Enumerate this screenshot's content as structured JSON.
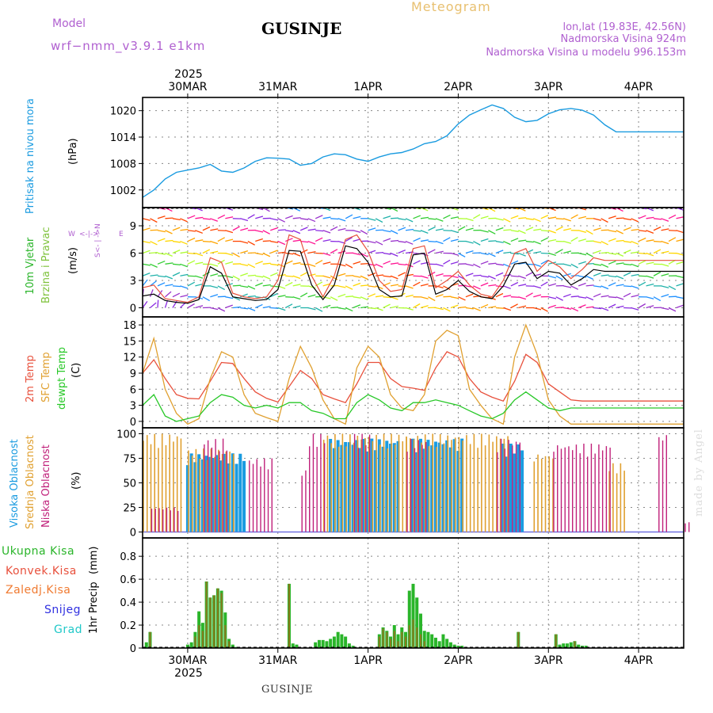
{
  "header": {
    "model_label": "Model",
    "model_name": "wrf−nmm_v3.9.1  e1km",
    "title": "GUSINJE",
    "subtitle": "Meteogram",
    "lonlat": "lon,lat (19.83E, 42.56N)",
    "elevation": "Nadmorska Visina 924m",
    "model_elevation": "Nadmorska Visina u modelu 996.153m",
    "footer": "GUSINJE",
    "credit": "made by Angel"
  },
  "time_axis": {
    "year": "2025",
    "labels": [
      "30MAR",
      "31MAR",
      "1APR",
      "2APR",
      "3APR",
      "4APR"
    ],
    "range_hours": [
      -12,
      132
    ]
  },
  "colors": {
    "pressure": "#1a9be0",
    "wind_axis": "#2ab52a",
    "wind_axis2": "#7ec23a",
    "t2m": "#e8503c",
    "sfc": "#e0a030",
    "dew": "#28c828",
    "cloud_high": "#1a9be0",
    "cloud_mid": "#e0a030",
    "cloud_low": "#c0207a",
    "precip_total": "#2ab52a",
    "precip_conv": "#e8503c",
    "precip_frz": "#f07a30",
    "precip_snow": "#3030e0",
    "precip_hail": "#20c8c8",
    "magenta": "#b060d0"
  },
  "chart_data": [
    {
      "type": "line",
      "ylabel": "Pritisak na nivou mora",
      "unit": "(hPa)",
      "yticks": [
        1002,
        1008,
        1014,
        1020
      ],
      "ylim": [
        998,
        1023
      ],
      "x": [
        -12,
        -9,
        -6,
        -3,
        0,
        3,
        6,
        9,
        12,
        15,
        18,
        21,
        24,
        27,
        30,
        33,
        36,
        39,
        42,
        45,
        48,
        51,
        54,
        57,
        60,
        63,
        66,
        69,
        72,
        75,
        78,
        81,
        84,
        87,
        90,
        93,
        96,
        99,
        102,
        105,
        108,
        111,
        114,
        117,
        120,
        123,
        126,
        129,
        132
      ],
      "series": [
        {
          "values": [
            1000.3,
            1002,
            1004.5,
            1006,
            1006.5,
            1007,
            1007.8,
            1006.3,
            1006,
            1007,
            1008.5,
            1009.3,
            1009.2,
            1009,
            1007.6,
            1008,
            1009.5,
            1010.2,
            1010,
            1009,
            1008.5,
            1009.5,
            1010.2,
            1010.5,
            1011.3,
            1012.5,
            1013,
            1014.3,
            1017,
            1019,
            1020.2,
            1021.3,
            1020.5,
            1018.5,
            1017.5,
            1017.8,
            1019.3,
            1020.2,
            1020.5,
            1020.1,
            1019,
            1016.8,
            1015.2,
            1015.2,
            1015.2,
            1015.2,
            1015.2,
            1015.2,
            1015.2
          ]
        }
      ]
    },
    {
      "type": "line",
      "ylabel": "10m Vjetar Brzina i Pravac",
      "unit": "(m/s)",
      "compass": "N <- | -> S  W ... E",
      "yticks": [
        0,
        3,
        6,
        9
      ],
      "ylim": [
        -1,
        11
      ],
      "x": [
        -12,
        -9,
        -6,
        -3,
        0,
        3,
        6,
        9,
        12,
        15,
        18,
        21,
        24,
        27,
        30,
        33,
        36,
        39,
        42,
        45,
        48,
        51,
        54,
        57,
        60,
        63,
        66,
        69,
        72,
        75,
        78,
        81,
        84,
        87,
        90,
        93,
        96,
        99,
        102,
        105,
        108,
        111,
        114,
        117,
        120,
        123,
        126,
        129,
        132
      ],
      "series": [
        {
          "name": "speed",
          "values": [
            1.3,
            1.5,
            0.8,
            0.6,
            0.5,
            0.9,
            4.5,
            3.8,
            1.2,
            1.0,
            0.8,
            0.9,
            2.0,
            6.3,
            6.2,
            2.5,
            0.9,
            2.5,
            6.8,
            6.5,
            5.0,
            2.0,
            1.2,
            1.3,
            5.8,
            6.0,
            1.5,
            2.0,
            3.0,
            1.8,
            1.2,
            1.0,
            2.4,
            4.8,
            5.0,
            3.2,
            4.0,
            3.8,
            2.5,
            3.2,
            4.2,
            4.0,
            4.0,
            4.0,
            4.0,
            4.0,
            4.0,
            4.0,
            4.0
          ]
        },
        {
          "name": "gust",
          "values": [
            2.2,
            2.5,
            1.0,
            0.8,
            0.6,
            1.2,
            5.5,
            5.0,
            1.6,
            1.2,
            1.0,
            1.2,
            3.0,
            8.0,
            7.5,
            3.5,
            1.2,
            3.5,
            7.5,
            8.0,
            6.2,
            3.0,
            1.8,
            2.0,
            6.5,
            6.8,
            2.2,
            3.0,
            4.0,
            2.5,
            1.5,
            1.2,
            3.0,
            6.0,
            6.5,
            4.0,
            5.2,
            4.5,
            3.2,
            4.2,
            5.5,
            5.2,
            5.2,
            5.2,
            5.2,
            5.2,
            5.2,
            5.2,
            5.2
          ]
        }
      ]
    },
    {
      "type": "line",
      "ylabel": "2m Temp / SFC Temp / dewpt Temp",
      "unit": "(C)",
      "yticks": [
        0,
        3,
        6,
        9,
        12,
        15,
        18
      ],
      "ylim": [
        -1.2,
        19.5
      ],
      "x": [
        -12,
        -9,
        -6,
        -3,
        0,
        3,
        6,
        9,
        12,
        15,
        18,
        21,
        24,
        27,
        30,
        33,
        36,
        39,
        42,
        45,
        48,
        51,
        54,
        57,
        60,
        63,
        66,
        69,
        72,
        75,
        78,
        81,
        84,
        87,
        90,
        93,
        96,
        99,
        102,
        105,
        108,
        111,
        114,
        117,
        120,
        123,
        126,
        129,
        132
      ],
      "series": [
        {
          "name": "2m Temp",
          "values": [
            9,
            11.5,
            8,
            5,
            4.3,
            4.2,
            7.5,
            11,
            10.8,
            8,
            5.5,
            4.3,
            3.6,
            6.5,
            9.5,
            8,
            5,
            4.2,
            3.5,
            7,
            11,
            11,
            8,
            6.5,
            6.2,
            5.8,
            10,
            13,
            12,
            8,
            5.5,
            4.5,
            3.8,
            7.5,
            12.5,
            11,
            7,
            5.5,
            4,
            3.8,
            3.8,
            3.8,
            3.8,
            3.8,
            3.8,
            3.8,
            3.8,
            3.8,
            3.8
          ]
        },
        {
          "name": "SFC Temp",
          "values": [
            9,
            15.5,
            6,
            1.5,
            -0.5,
            0.5,
            8,
            13,
            12,
            5,
            1.5,
            0.7,
            0,
            8,
            14,
            10,
            4,
            0.5,
            -0.5,
            10,
            14,
            12,
            5,
            2.5,
            2,
            5,
            15,
            17,
            16,
            6,
            3,
            0.5,
            -0.5,
            12,
            18,
            12.5,
            4,
            1,
            -0.5,
            -0.5,
            -0.5,
            -0.5,
            -0.5,
            -0.5,
            -0.5,
            -0.5,
            -0.5,
            -0.5,
            -0.5
          ]
        },
        {
          "name": "dewpt Temp",
          "values": [
            3,
            5,
            1,
            0,
            0.5,
            1,
            3.5,
            5,
            4.5,
            3,
            2.5,
            3,
            2.5,
            3.5,
            3.5,
            2,
            1.5,
            0.5,
            0.5,
            3.5,
            5,
            4,
            2.5,
            2,
            3.5,
            3.5,
            4,
            3.5,
            3,
            2,
            1,
            0.5,
            1.5,
            4,
            5.5,
            4,
            2.5,
            2,
            2.5,
            2.5,
            2.5,
            2.5,
            2.5,
            2.5,
            2.5,
            2.5,
            2.5,
            2.5,
            2.5
          ]
        }
      ]
    },
    {
      "type": "bar",
      "ylabel": "Visoka Oblacnost / Srednja Oblacnost / Niska Oblacnost",
      "unit": "(%)",
      "yticks": [
        0,
        25,
        50,
        75,
        100
      ],
      "ylim": [
        -6,
        106
      ],
      "series": [
        {
          "name": "Visoka Oblacnost",
          "segments": [
            [
              0,
              15,
              80
            ],
            [
              38,
              56,
              95
            ],
            [
              60,
              73,
              95
            ],
            [
              84,
              89,
              90
            ]
          ]
        },
        {
          "name": "Srednja Oblacnost",
          "segments": [
            [
              -12,
              -2,
              100
            ],
            [
              0,
              12,
              85
            ],
            [
              36,
              58,
              100
            ],
            [
              58,
              85,
              100
            ],
            [
              92,
              97,
              80
            ],
            [
              112,
              116,
              70
            ]
          ]
        },
        {
          "name": "Niska Oblacnost",
          "segments": [
            [
              -10,
              -3,
              25
            ],
            [
              4,
              10,
              95
            ],
            [
              16,
              22,
              75
            ],
            [
              30,
              32,
              63
            ],
            [
              32,
              36,
              100
            ],
            [
              44,
              48,
              100
            ],
            [
              58,
              63,
              95
            ],
            [
              82,
              88,
              95
            ],
            [
              97,
              112,
              90
            ],
            [
              125,
              127,
              100
            ],
            [
              132,
              133,
              10
            ]
          ]
        }
      ]
    },
    {
      "type": "bar",
      "ylabel": "1hr Precip",
      "unit": "(mm)",
      "series_labels": [
        "Ukupna Kisa",
        "Konvek.Kisa",
        "Zaledj.Kisa",
        "Snijeg",
        "Grad"
      ],
      "yticks": [
        0,
        0.2,
        0.4,
        0.6,
        0.8
      ],
      "ylim": [
        0,
        0.96
      ],
      "x": [
        -11,
        -10,
        0,
        1,
        2,
        3,
        4,
        5,
        6,
        7,
        8,
        9,
        10,
        11,
        12,
        13,
        27,
        28,
        29,
        34,
        35,
        36,
        37,
        38,
        39,
        40,
        41,
        42,
        43,
        44,
        51,
        52,
        53,
        54,
        55,
        56,
        57,
        58,
        59,
        60,
        61,
        62,
        63,
        64,
        65,
        66,
        67,
        68,
        69,
        70,
        71,
        72,
        73,
        88,
        98,
        99,
        100,
        101,
        102,
        103,
        104,
        105,
        106
      ],
      "series": [
        {
          "name": "Ukupna Kisa",
          "values": [
            0.05,
            0.14,
            0.03,
            0.05,
            0.14,
            0.32,
            0.22,
            0.58,
            0.44,
            0.46,
            0.52,
            0.5,
            0.31,
            0.08,
            0.03,
            0.01,
            0.56,
            0.04,
            0.03,
            0.05,
            0.07,
            0.07,
            0.06,
            0.08,
            0.1,
            0.14,
            0.12,
            0.1,
            0.04,
            0.02,
            0.12,
            0.18,
            0.15,
            0.1,
            0.2,
            0.12,
            0.18,
            0.14,
            0.5,
            0.56,
            0.44,
            0.3,
            0.15,
            0.14,
            0.12,
            0.09,
            0.06,
            0.12,
            0.08,
            0.05,
            0.03,
            0.02,
            0.02,
            0.14,
            0.12,
            0.03,
            0.04,
            0.04,
            0.05,
            0.06,
            0.03,
            0.02,
            0.02
          ]
        },
        {
          "name": "Konvek.Kisa",
          "values": [
            0.05,
            0.14,
            0.03,
            0.04,
            0.1,
            0.2,
            0.15,
            0.58,
            0.44,
            0.46,
            0.52,
            0.48,
            0.2,
            0.06,
            0.02,
            0.0,
            0.56,
            0.03,
            0.02,
            0.02,
            0.03,
            0.02,
            0.02,
            0.03,
            0.04,
            0.05,
            0.04,
            0.03,
            0.02,
            0.01,
            0.1,
            0.17,
            0.14,
            0.08,
            0.15,
            0.06,
            0.14,
            0.1,
            0.2,
            0.25,
            0.18,
            0.12,
            0.06,
            0.05,
            0.04,
            0.03,
            0.02,
            0.04,
            0.03,
            0.02,
            0.01,
            0.01,
            0.01,
            0.14,
            0.12,
            0.03,
            0.04,
            0.04,
            0.05,
            0.06,
            0.03,
            0.02,
            0.02
          ]
        }
      ]
    }
  ]
}
